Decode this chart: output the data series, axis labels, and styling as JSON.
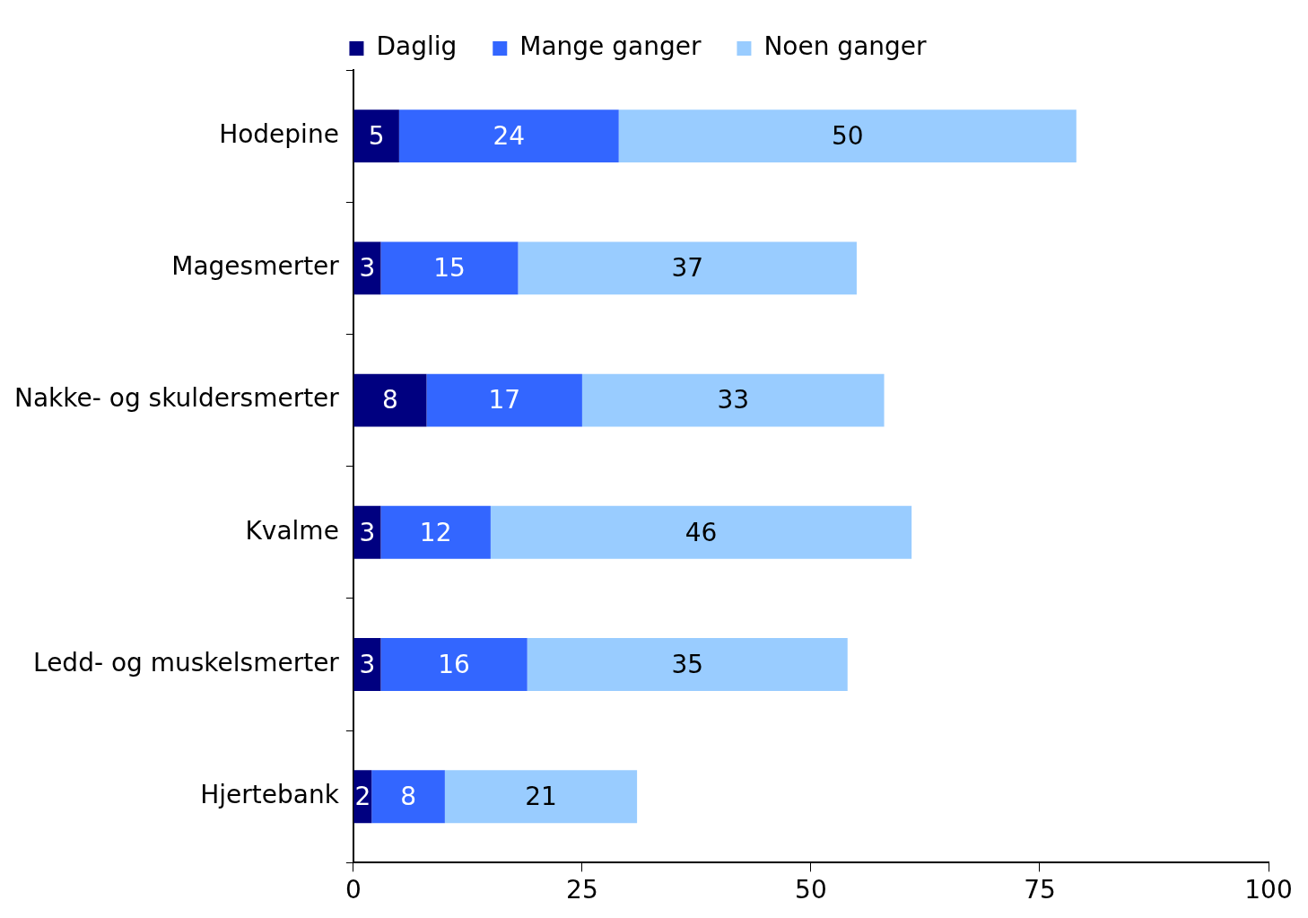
{
  "chart_data": {
    "type": "bar",
    "orientation": "horizontal",
    "stacked": true,
    "categories": [
      "Hodepine",
      "Magesmerter",
      "Nakke- og skuldersmerter",
      "Kvalme",
      "Ledd- og muskelsmerter",
      "Hjertebank"
    ],
    "series": [
      {
        "name": "Daglig",
        "color": "#000080",
        "values": [
          5,
          3,
          8,
          3,
          3,
          2
        ]
      },
      {
        "name": "Mange ganger",
        "color": "#3366ff",
        "values": [
          24,
          15,
          17,
          12,
          16,
          8
        ]
      },
      {
        "name": "Noen ganger",
        "color": "#99ccff",
        "values": [
          50,
          37,
          33,
          46,
          35,
          21
        ]
      }
    ],
    "xlim": [
      0,
      100
    ],
    "xticks": [
      0,
      25,
      50,
      75,
      100
    ],
    "grid": false,
    "legend": "top",
    "data_labels": true
  }
}
